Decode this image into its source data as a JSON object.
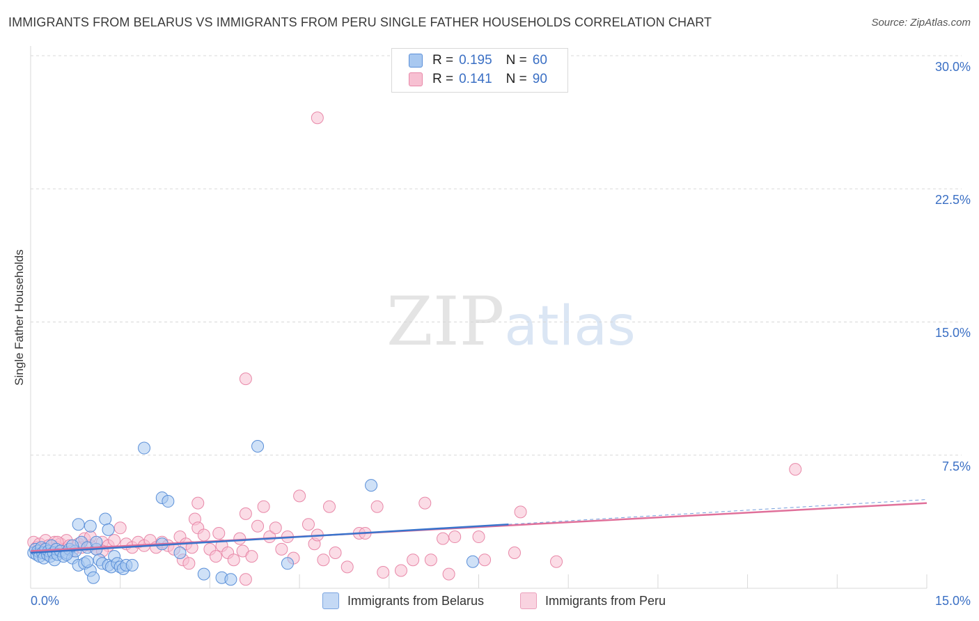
{
  "title": "IMMIGRANTS FROM BELARUS VS IMMIGRANTS FROM PERU SINGLE FATHER HOUSEHOLDS CORRELATION CHART",
  "source": "Source: ZipAtlas.com",
  "watermark": {
    "zip": "ZIP",
    "atlas": "atlas"
  },
  "legend": {
    "belarus": {
      "r_label": "R =",
      "r_value": "0.195",
      "n_label": "N =",
      "n_value": "60"
    },
    "peru": {
      "r_label": "R =",
      "r_value": "0.141",
      "n_label": "N =",
      "n_value": "90"
    }
  },
  "colors": {
    "belarus_fill": "#a8c8f0",
    "belarus_stroke": "#5a8fd8",
    "belarus_line": "#3a74cc",
    "peru_fill": "#f7c0d2",
    "peru_stroke": "#e888a8",
    "peru_line": "#e0709a",
    "grid": "#d8d8d8",
    "tick_text": "#3a6fc4"
  },
  "chart_data": {
    "type": "scatter",
    "title": "IMMIGRANTS FROM BELARUS VS IMMIGRANTS FROM PERU SINGLE FATHER HOUSEHOLDS CORRELATION CHART",
    "xlabel": "",
    "ylabel": "Single Father Households",
    "xlim": [
      0,
      15
    ],
    "ylim": [
      0,
      30
    ],
    "x_tick_labels": [
      "0.0%",
      "15.0%"
    ],
    "y_ticks": [
      7.5,
      15.0,
      22.5,
      30.0
    ],
    "y_tick_labels": [
      "7.5%",
      "15.0%",
      "22.5%",
      "30.0%"
    ],
    "grid": true,
    "legend_bottom": [
      "Immigrants from Belarus",
      "Immigrants from Peru"
    ],
    "series": [
      {
        "name": "Immigrants from Belarus",
        "r": 0.195,
        "n": 60,
        "trend": {
          "x": [
            0,
            8.0
          ],
          "y": [
            2.0,
            3.6
          ]
        },
        "trend_dashed": {
          "x": [
            8.0,
            15.0
          ],
          "y": [
            3.6,
            5.0
          ]
        },
        "points": [
          [
            0.05,
            2.0
          ],
          [
            0.08,
            2.2
          ],
          [
            0.1,
            1.9
          ],
          [
            0.12,
            2.1
          ],
          [
            0.15,
            1.8
          ],
          [
            0.18,
            2.3
          ],
          [
            0.2,
            2.0
          ],
          [
            0.22,
            1.7
          ],
          [
            0.25,
            2.2
          ],
          [
            0.28,
            1.9
          ],
          [
            0.3,
            2.1
          ],
          [
            0.33,
            1.8
          ],
          [
            0.35,
            2.4
          ],
          [
            0.38,
            2.0
          ],
          [
            0.4,
            1.6
          ],
          [
            0.43,
            2.2
          ],
          [
            0.45,
            1.9
          ],
          [
            0.5,
            2.1
          ],
          [
            0.55,
            1.8
          ],
          [
            0.6,
            2.0
          ],
          [
            0.65,
            2.2
          ],
          [
            0.7,
            1.7
          ],
          [
            0.75,
            2.1
          ],
          [
            0.8,
            1.3
          ],
          [
            0.85,
            2.6
          ],
          [
            0.9,
            1.4
          ],
          [
            0.95,
            2.3
          ],
          [
            1.0,
            1.0
          ],
          [
            1.05,
            0.6
          ],
          [
            1.1,
            2.2
          ],
          [
            1.15,
            1.6
          ],
          [
            1.2,
            1.4
          ],
          [
            1.25,
            3.9
          ],
          [
            1.3,
            1.3
          ],
          [
            1.35,
            1.2
          ],
          [
            1.4,
            1.8
          ],
          [
            1.45,
            1.4
          ],
          [
            1.5,
            1.2
          ],
          [
            1.55,
            1.1
          ],
          [
            1.6,
            1.3
          ],
          [
            1.7,
            1.3
          ],
          [
            0.8,
            3.6
          ],
          [
            1.3,
            3.3
          ],
          [
            1.0,
            3.5
          ],
          [
            1.9,
            7.9
          ],
          [
            2.2,
            5.1
          ],
          [
            2.3,
            4.9
          ],
          [
            2.5,
            2.0
          ],
          [
            2.9,
            0.8
          ],
          [
            3.2,
            0.6
          ],
          [
            3.35,
            0.5
          ],
          [
            3.8,
            8.0
          ],
          [
            4.3,
            1.4
          ],
          [
            5.7,
            5.8
          ],
          [
            7.4,
            1.5
          ],
          [
            2.2,
            2.5
          ],
          [
            0.7,
            2.4
          ],
          [
            0.6,
            1.9
          ],
          [
            1.1,
            2.6
          ],
          [
            0.95,
            1.5
          ]
        ]
      },
      {
        "name": "Immigrants from Peru",
        "r": 0.141,
        "n": 90,
        "trend": {
          "x": [
            0,
            15.0
          ],
          "y": [
            2.1,
            4.8
          ]
        },
        "points": [
          [
            0.05,
            2.6
          ],
          [
            0.1,
            2.3
          ],
          [
            0.15,
            2.5
          ],
          [
            0.2,
            2.2
          ],
          [
            0.25,
            2.7
          ],
          [
            0.3,
            2.4
          ],
          [
            0.35,
            2.1
          ],
          [
            0.4,
            2.6
          ],
          [
            0.45,
            2.3
          ],
          [
            0.5,
            2.5
          ],
          [
            0.55,
            2.2
          ],
          [
            0.6,
            2.7
          ],
          [
            0.65,
            2.4
          ],
          [
            0.7,
            2.1
          ],
          [
            0.8,
            2.5
          ],
          [
            0.85,
            2.3
          ],
          [
            0.9,
            2.8
          ],
          [
            1.0,
            2.4
          ],
          [
            1.1,
            2.2
          ],
          [
            1.2,
            2.6
          ],
          [
            1.3,
            2.4
          ],
          [
            1.4,
            2.7
          ],
          [
            1.5,
            3.4
          ],
          [
            1.6,
            2.5
          ],
          [
            1.7,
            2.3
          ],
          [
            1.8,
            2.6
          ],
          [
            1.9,
            2.4
          ],
          [
            2.0,
            2.7
          ],
          [
            2.1,
            2.3
          ],
          [
            2.2,
            2.6
          ],
          [
            2.3,
            2.4
          ],
          [
            2.4,
            2.2
          ],
          [
            2.5,
            2.9
          ],
          [
            2.55,
            1.6
          ],
          [
            2.6,
            2.5
          ],
          [
            2.65,
            1.4
          ],
          [
            2.7,
            2.3
          ],
          [
            2.75,
            3.9
          ],
          [
            2.8,
            3.4
          ],
          [
            2.9,
            3.0
          ],
          [
            3.0,
            2.2
          ],
          [
            3.1,
            1.8
          ],
          [
            3.15,
            3.1
          ],
          [
            3.2,
            2.4
          ],
          [
            3.3,
            2.0
          ],
          [
            3.4,
            1.6
          ],
          [
            3.5,
            2.8
          ],
          [
            3.55,
            2.1
          ],
          [
            3.6,
            4.2
          ],
          [
            3.7,
            1.8
          ],
          [
            3.8,
            3.5
          ],
          [
            3.9,
            4.6
          ],
          [
            4.0,
            2.9
          ],
          [
            4.1,
            3.4
          ],
          [
            4.2,
            2.2
          ],
          [
            4.3,
            2.9
          ],
          [
            4.4,
            1.7
          ],
          [
            4.5,
            5.2
          ],
          [
            4.65,
            3.6
          ],
          [
            4.75,
            2.5
          ],
          [
            4.8,
            3.0
          ],
          [
            4.9,
            1.6
          ],
          [
            5.0,
            4.6
          ],
          [
            5.1,
            2.0
          ],
          [
            5.3,
            1.2
          ],
          [
            5.5,
            3.1
          ],
          [
            5.6,
            3.1
          ],
          [
            5.8,
            4.6
          ],
          [
            5.9,
            0.9
          ],
          [
            6.2,
            1.0
          ],
          [
            6.4,
            1.6
          ],
          [
            6.6,
            4.8
          ],
          [
            6.7,
            1.6
          ],
          [
            6.9,
            2.8
          ],
          [
            7.0,
            0.8
          ],
          [
            7.1,
            2.9
          ],
          [
            7.5,
            2.9
          ],
          [
            7.6,
            1.6
          ],
          [
            8.1,
            2.0
          ],
          [
            8.2,
            4.3
          ],
          [
            8.8,
            1.5
          ],
          [
            12.8,
            6.7
          ],
          [
            4.8,
            26.5
          ],
          [
            3.6,
            11.8
          ],
          [
            3.6,
            0.5
          ],
          [
            2.8,
            4.8
          ],
          [
            0.3,
            2.0
          ],
          [
            0.45,
            2.6
          ],
          [
            1.0,
            2.9
          ],
          [
            1.2,
            2.1
          ]
        ]
      }
    ]
  }
}
